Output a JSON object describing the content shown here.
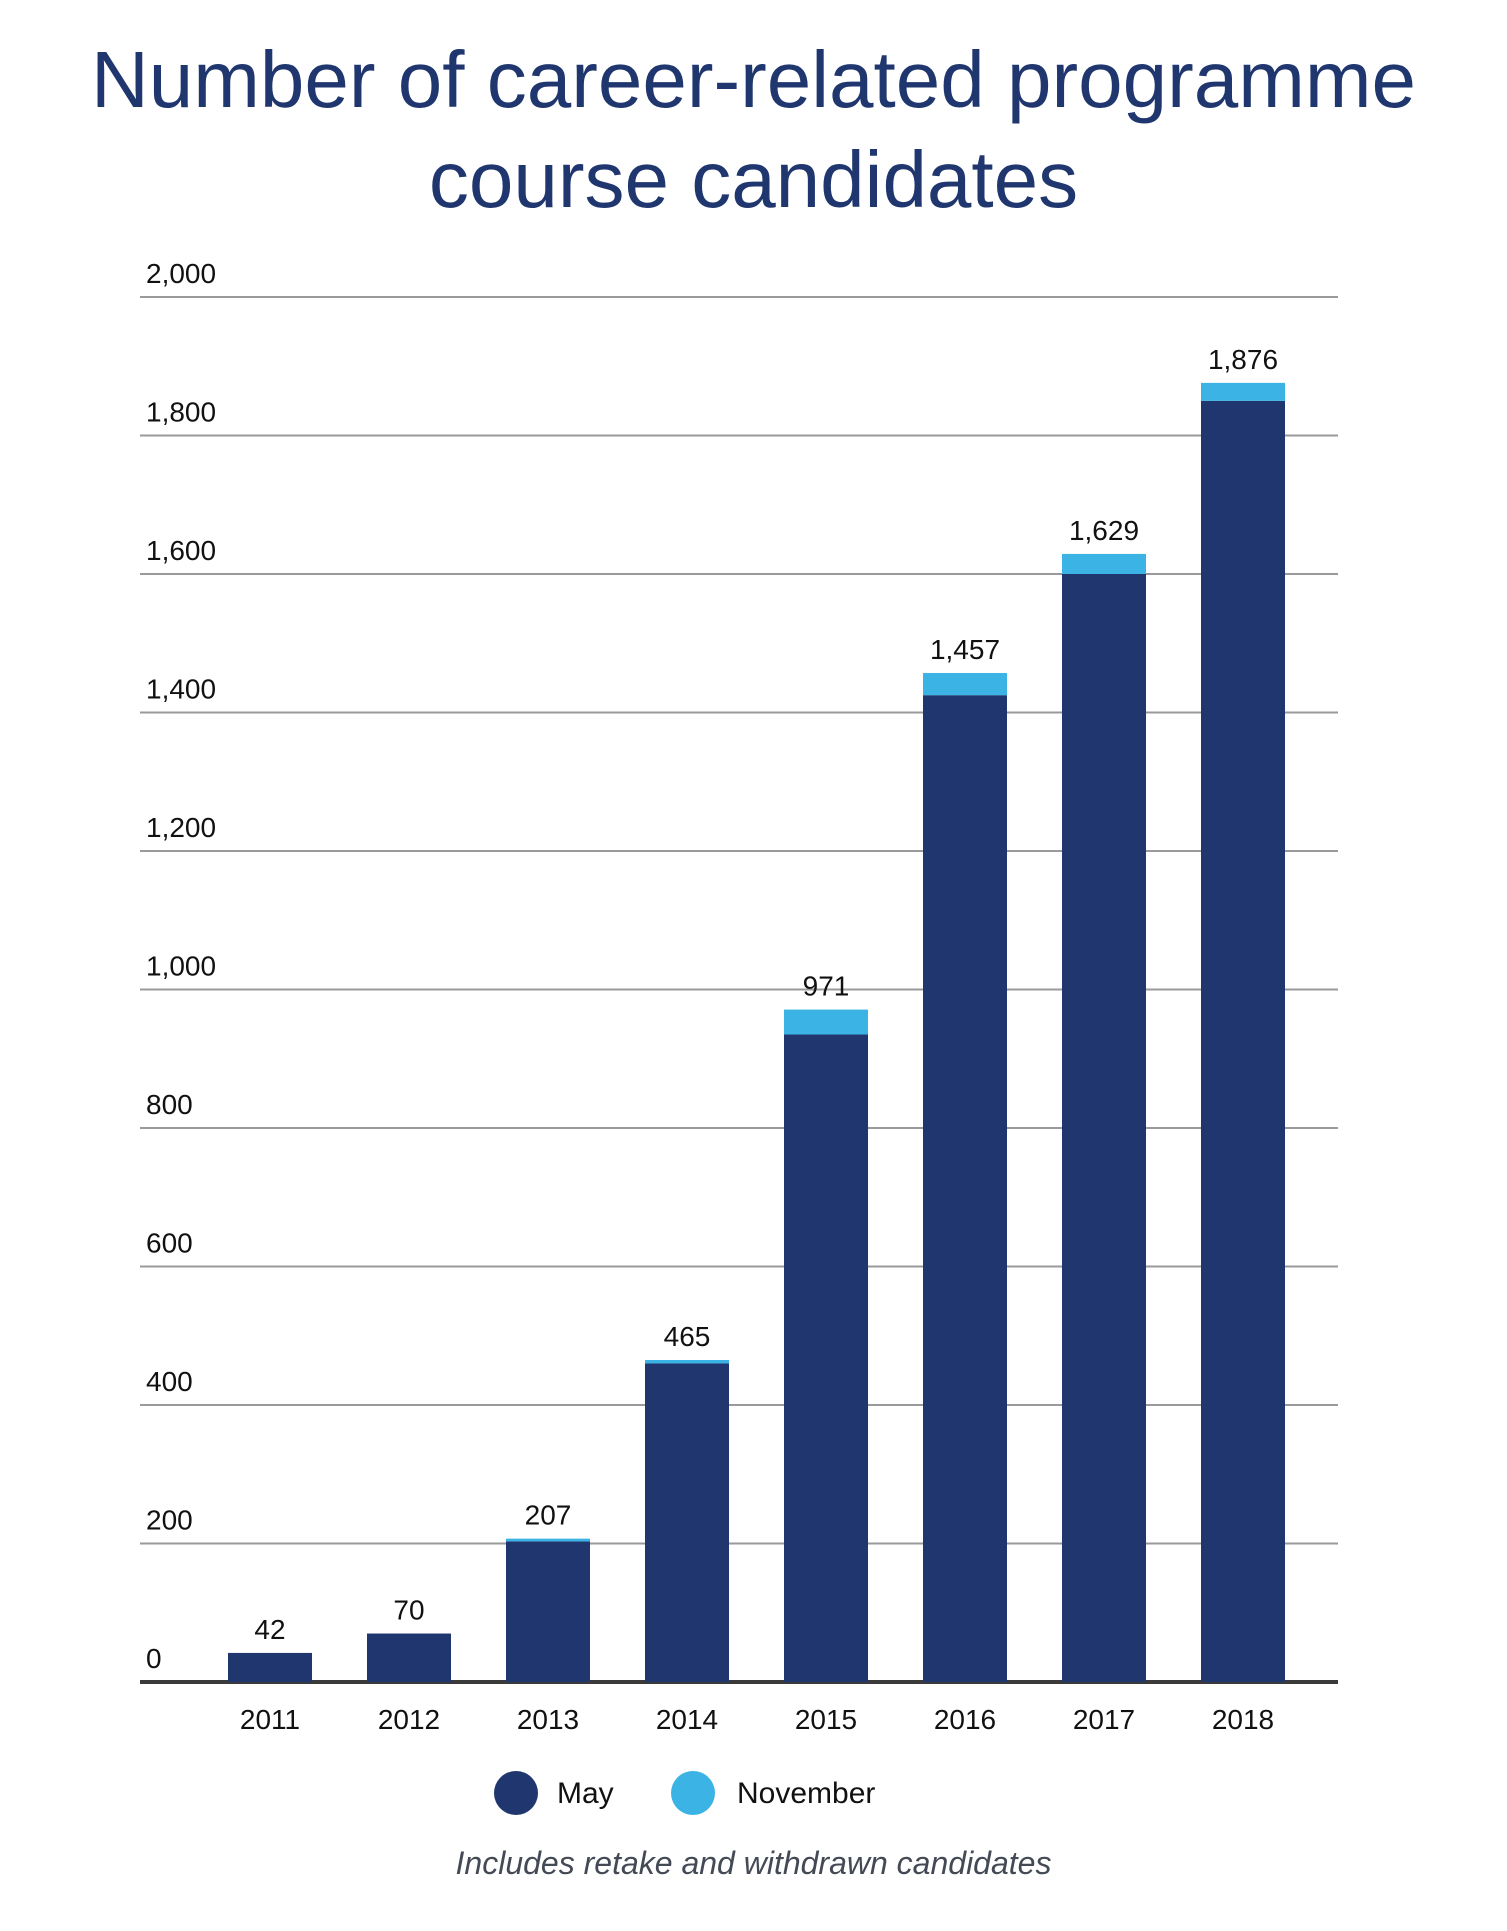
{
  "chart_data": {
    "type": "bar",
    "stacked": true,
    "title_lines": [
      "Number of career-related programme",
      "course candidates"
    ],
    "xlabel": "",
    "ylabel": "",
    "categories": [
      "2011",
      "2012",
      "2013",
      "2014",
      "2015",
      "2016",
      "2017",
      "2018"
    ],
    "series": [
      {
        "name": "May",
        "color": "#20366e",
        "values": [
          42,
          70,
          203,
          460,
          935,
          1425,
          1600,
          1850
        ]
      },
      {
        "name": "November",
        "color": "#3bb3e4",
        "values": [
          0,
          0,
          4,
          5,
          36,
          32,
          29,
          26
        ]
      }
    ],
    "totals": [
      42,
      70,
      207,
      465,
      971,
      1457,
      1629,
      1876
    ],
    "total_labels": [
      "42",
      "70",
      "207",
      "465",
      "971",
      "1,457",
      "1,629",
      "1,876"
    ],
    "yticks": [
      0,
      200,
      400,
      600,
      800,
      1000,
      1200,
      1400,
      1600,
      1800,
      2000
    ],
    "ytick_labels": [
      "0",
      "200",
      "400",
      "600",
      "800",
      "1,000",
      "1,200",
      "1,400",
      "1,600",
      "1,800",
      "2,000"
    ],
    "ylim": [
      0,
      2000
    ],
    "grid": true,
    "legend_position": "bottom",
    "footnote": "Includes retake and withdrawn candidates"
  }
}
